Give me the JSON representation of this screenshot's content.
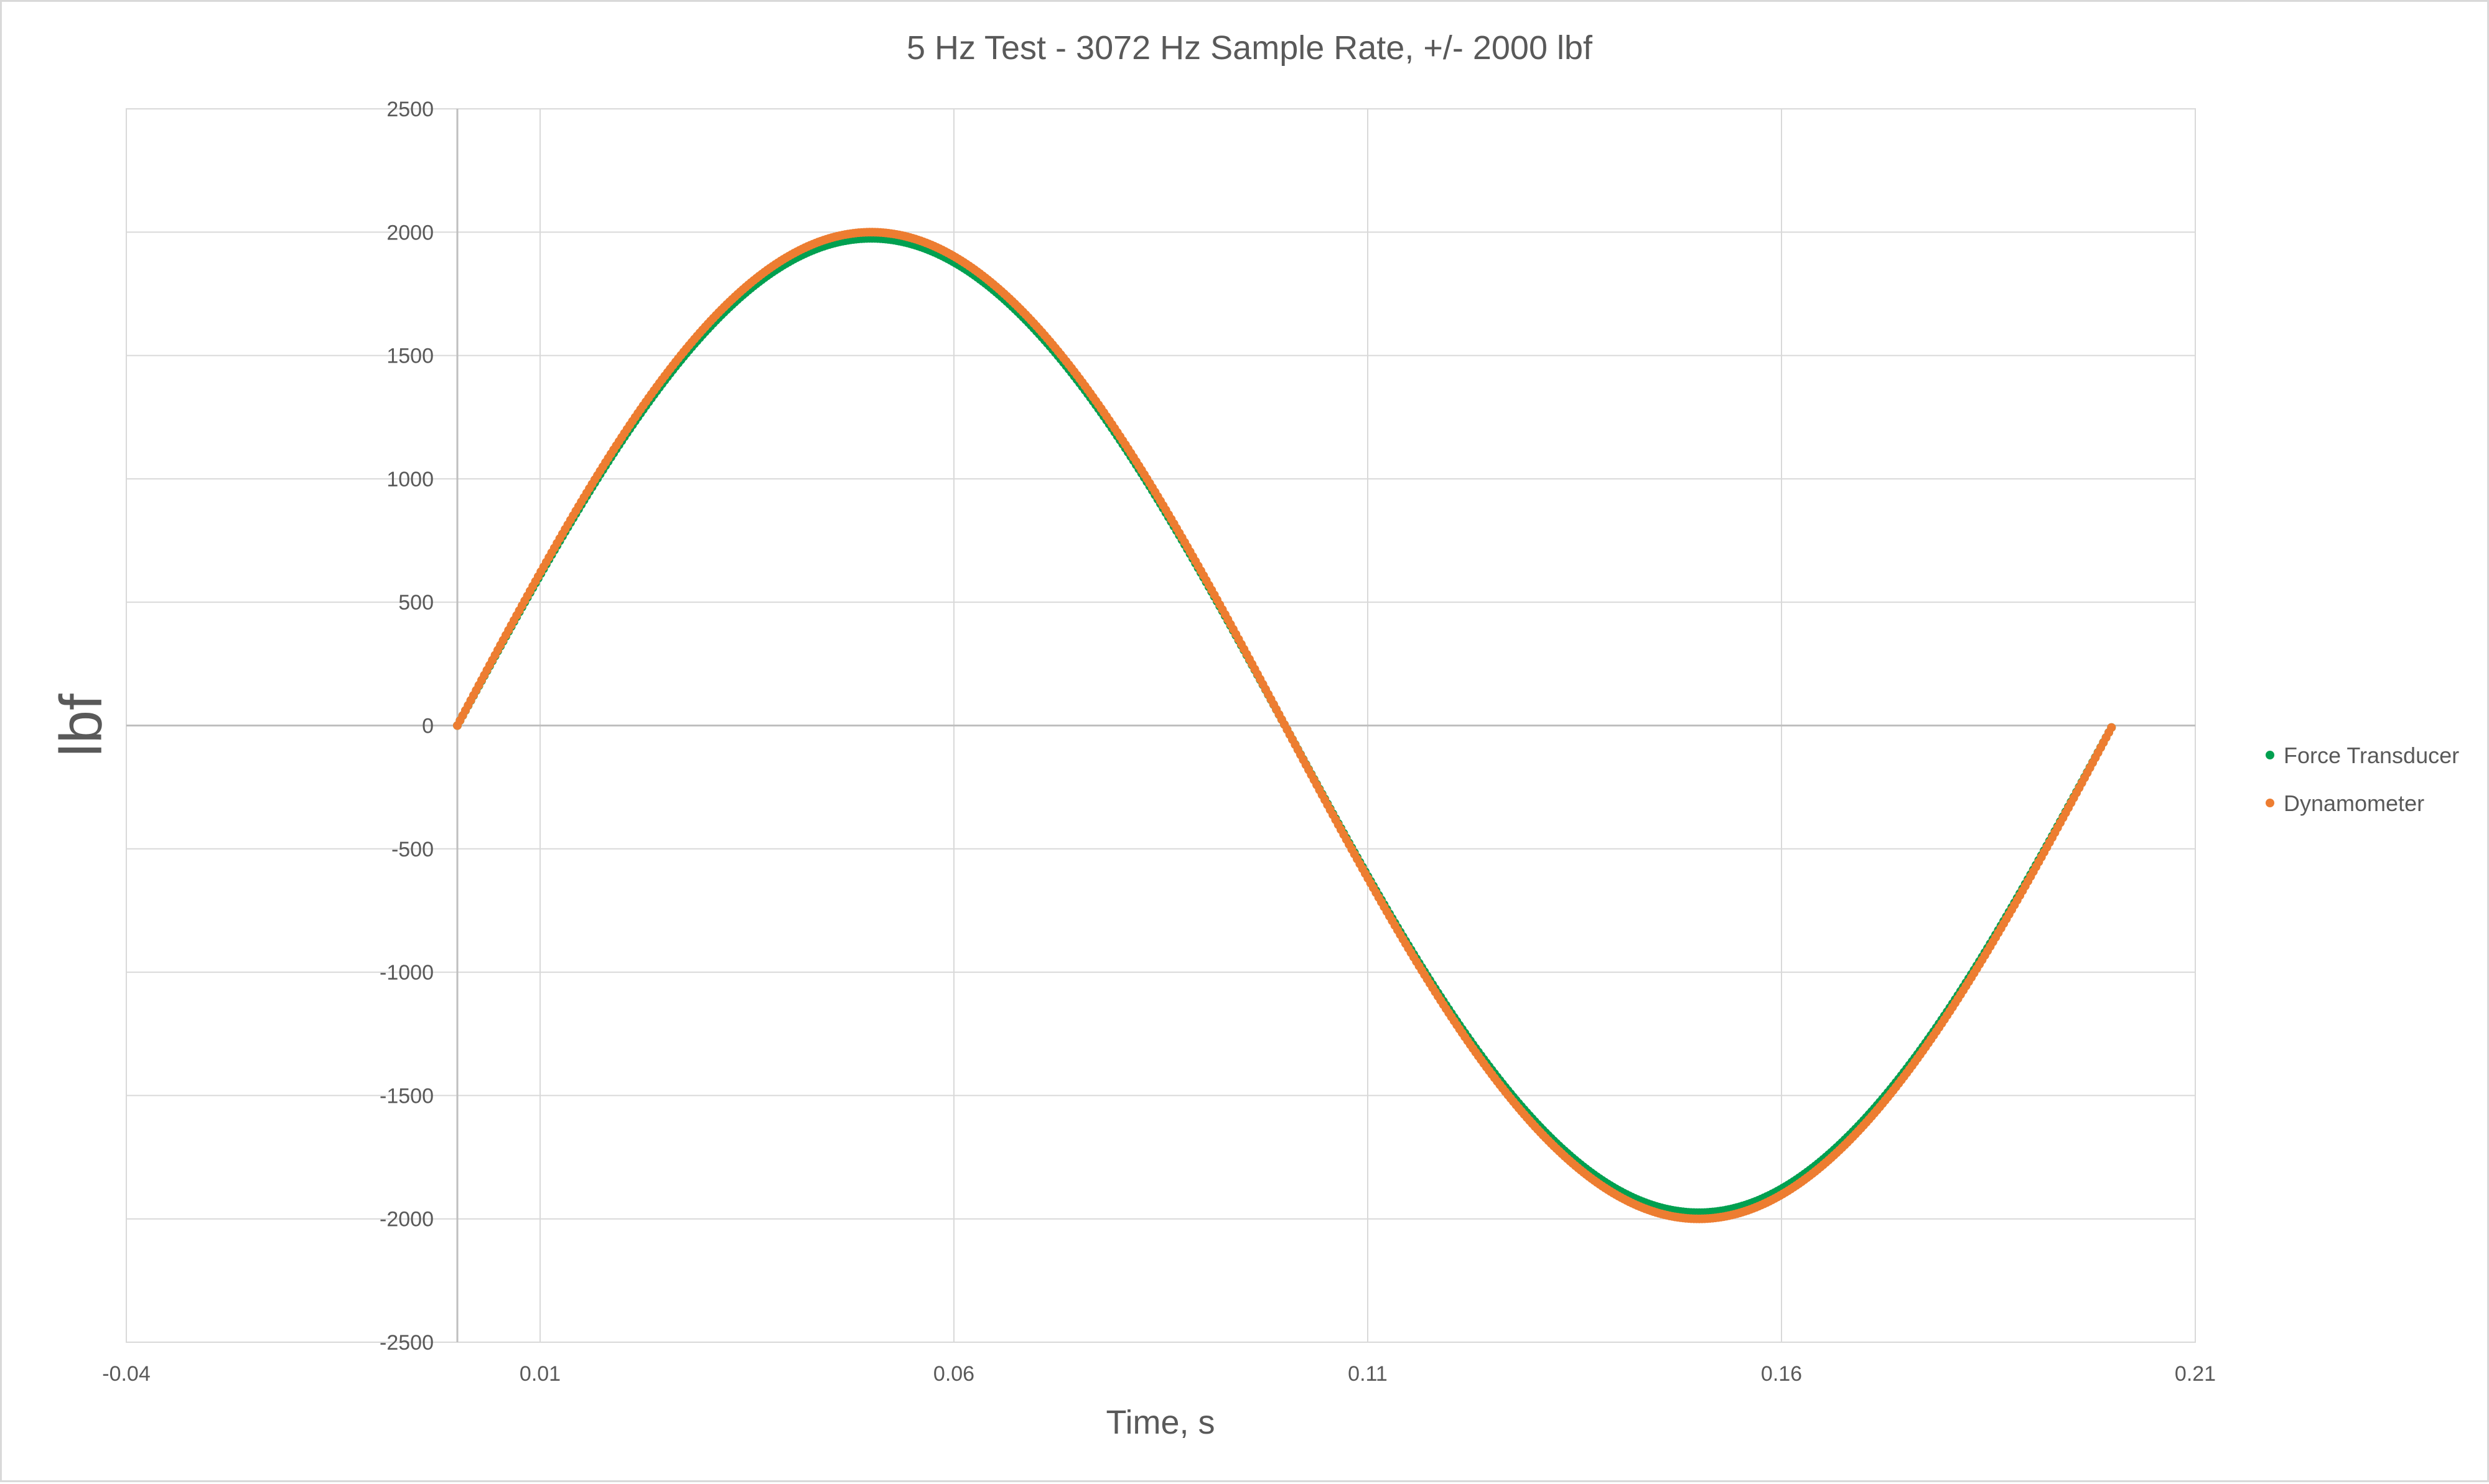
{
  "chart_data": {
    "type": "scatter",
    "title": "5 Hz Test - 3072 Hz Sample Rate, +/- 2000 lbf",
    "xlabel": "Time, s",
    "ylabel": "lbf",
    "xlim": [
      -0.04,
      0.21
    ],
    "ylim": [
      -2500,
      2500
    ],
    "x_ticks": [
      -0.04,
      0.01,
      0.06,
      0.11,
      0.16,
      0.21
    ],
    "x_tick_labels": [
      "-0.04",
      "0.01",
      "0.06",
      "0.11",
      "0.16",
      "0.21"
    ],
    "y_ticks": [
      -2500,
      -2000,
      -1500,
      -1000,
      -500,
      0,
      500,
      1000,
      1500,
      2000,
      2500
    ],
    "y_tick_labels": [
      "-2500",
      "-2000",
      "-1500",
      "-1000",
      "-500",
      "0",
      "500",
      "1000",
      "1500",
      "2000",
      "2500"
    ],
    "grid": true,
    "legend_position": "right",
    "series": [
      {
        "name": "Force Transducer",
        "color": "#00a050",
        "sample_rate_hz": 3072,
        "x_start": 0.0,
        "x_end": 0.2,
        "frequency_hz": 5,
        "amplitude": 1975,
        "offset": 0
      },
      {
        "name": "Dynamometer",
        "color": "#ed7d31",
        "sample_rate_hz": 3072,
        "x_start": 0.0,
        "x_end": 0.2,
        "frequency_hz": 5,
        "amplitude": 2000,
        "offset": 0
      }
    ]
  }
}
